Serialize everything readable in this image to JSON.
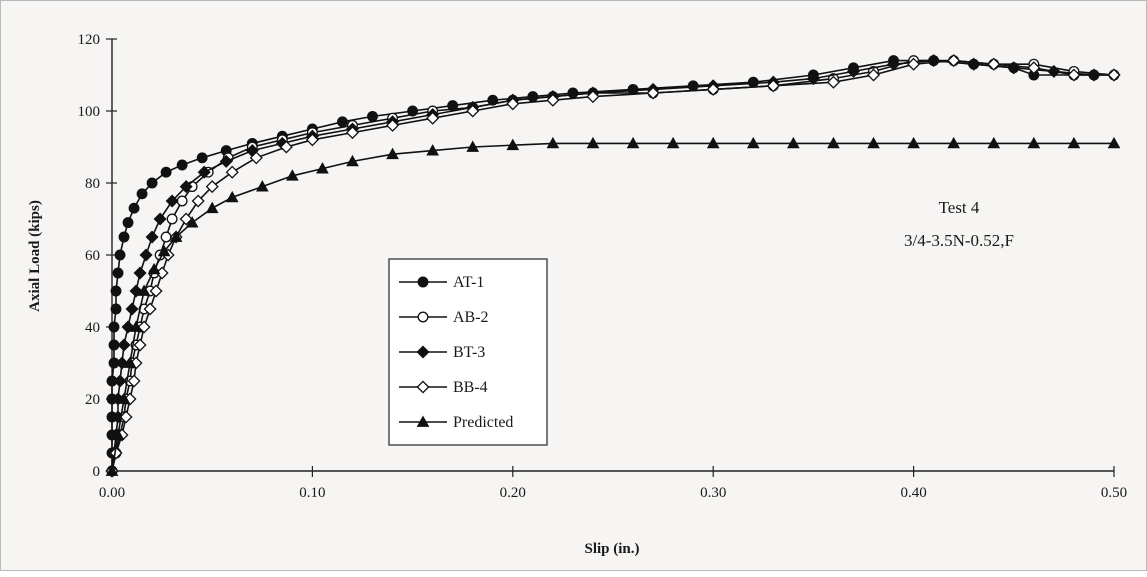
{
  "chart_data": {
    "type": "line",
    "title": "",
    "xlabel": "Slip (in.)",
    "ylabel": "Axial Load (kips)",
    "xlim": [
      0,
      0.5
    ],
    "ylim": [
      0,
      120
    ],
    "x_ticks": [
      "0.00",
      "0.10",
      "0.20",
      "0.30",
      "0.40",
      "0.50"
    ],
    "y_ticks": [
      "0",
      "20",
      "40",
      "60",
      "80",
      "100",
      "120"
    ],
    "grid": false,
    "legend_position": "center-left",
    "annotations": [
      "Test 4",
      "3/4-3.5N-0.52,F"
    ],
    "series": [
      {
        "name": "AT-1",
        "marker": "filled-circle",
        "color": "#111111",
        "points": [
          [
            0,
            0
          ],
          [
            0,
            5
          ],
          [
            0,
            10
          ],
          [
            0,
            15
          ],
          [
            0,
            20
          ],
          [
            0,
            25
          ],
          [
            0.001,
            30
          ],
          [
            0.001,
            35
          ],
          [
            0.001,
            40
          ],
          [
            0.002,
            45
          ],
          [
            0.002,
            50
          ],
          [
            0.003,
            55
          ],
          [
            0.004,
            60
          ],
          [
            0.006,
            65
          ],
          [
            0.008,
            69
          ],
          [
            0.011,
            73
          ],
          [
            0.015,
            77
          ],
          [
            0.02,
            80
          ],
          [
            0.027,
            83
          ],
          [
            0.035,
            85
          ],
          [
            0.045,
            87
          ],
          [
            0.057,
            89
          ],
          [
            0.07,
            91
          ],
          [
            0.085,
            93
          ],
          [
            0.1,
            95
          ],
          [
            0.115,
            97
          ],
          [
            0.13,
            98.5
          ],
          [
            0.15,
            100
          ],
          [
            0.17,
            101.5
          ],
          [
            0.19,
            103
          ],
          [
            0.21,
            104
          ],
          [
            0.23,
            105
          ],
          [
            0.26,
            106
          ],
          [
            0.29,
            107
          ],
          [
            0.32,
            108
          ],
          [
            0.35,
            110
          ],
          [
            0.37,
            112
          ],
          [
            0.39,
            114
          ],
          [
            0.41,
            114
          ],
          [
            0.43,
            113
          ],
          [
            0.45,
            112
          ],
          [
            0.46,
            110
          ],
          [
            0.48,
            110
          ],
          [
            0.49,
            110
          ]
        ]
      },
      {
        "name": "AB-2",
        "marker": "open-circle",
        "color": "#111111",
        "points": [
          [
            0,
            0
          ],
          [
            0.002,
            5
          ],
          [
            0.004,
            10
          ],
          [
            0.006,
            15
          ],
          [
            0.007,
            20
          ],
          [
            0.009,
            25
          ],
          [
            0.01,
            30
          ],
          [
            0.012,
            35
          ],
          [
            0.014,
            40
          ],
          [
            0.016,
            45
          ],
          [
            0.019,
            50
          ],
          [
            0.021,
            55
          ],
          [
            0.024,
            60
          ],
          [
            0.027,
            65
          ],
          [
            0.03,
            70
          ],
          [
            0.035,
            75
          ],
          [
            0.04,
            79
          ],
          [
            0.048,
            83
          ],
          [
            0.058,
            87
          ],
          [
            0.07,
            90
          ],
          [
            0.085,
            92
          ],
          [
            0.1,
            94
          ],
          [
            0.12,
            96
          ],
          [
            0.14,
            98
          ],
          [
            0.16,
            100
          ],
          [
            0.18,
            101
          ],
          [
            0.2,
            103
          ],
          [
            0.22,
            104
          ],
          [
            0.24,
            105
          ],
          [
            0.27,
            105
          ],
          [
            0.3,
            106
          ],
          [
            0.33,
            107
          ],
          [
            0.36,
            109
          ],
          [
            0.38,
            111
          ],
          [
            0.4,
            114
          ],
          [
            0.42,
            114
          ],
          [
            0.44,
            113
          ],
          [
            0.46,
            113
          ],
          [
            0.48,
            111
          ],
          [
            0.5,
            110
          ]
        ]
      },
      {
        "name": "BT-3",
        "marker": "filled-diamond",
        "color": "#111111",
        "points": [
          [
            0,
            0
          ],
          [
            0.001,
            5
          ],
          [
            0.002,
            10
          ],
          [
            0.003,
            15
          ],
          [
            0.003,
            20
          ],
          [
            0.004,
            25
          ],
          [
            0.005,
            30
          ],
          [
            0.006,
            35
          ],
          [
            0.008,
            40
          ],
          [
            0.01,
            45
          ],
          [
            0.012,
            50
          ],
          [
            0.014,
            55
          ],
          [
            0.017,
            60
          ],
          [
            0.02,
            65
          ],
          [
            0.024,
            70
          ],
          [
            0.03,
            75
          ],
          [
            0.037,
            79
          ],
          [
            0.046,
            83
          ],
          [
            0.057,
            86
          ],
          [
            0.07,
            89
          ],
          [
            0.085,
            91
          ],
          [
            0.1,
            93
          ],
          [
            0.12,
            95
          ],
          [
            0.14,
            97
          ],
          [
            0.16,
            99
          ],
          [
            0.18,
            101
          ],
          [
            0.2,
            103
          ],
          [
            0.22,
            104
          ],
          [
            0.24,
            105
          ],
          [
            0.27,
            106
          ],
          [
            0.3,
            107
          ],
          [
            0.33,
            108
          ],
          [
            0.35,
            109
          ],
          [
            0.37,
            111
          ],
          [
            0.39,
            113
          ],
          [
            0.41,
            114
          ],
          [
            0.43,
            113
          ],
          [
            0.45,
            112
          ],
          [
            0.47,
            111
          ],
          [
            0.49,
            110
          ],
          [
            0.5,
            110
          ]
        ]
      },
      {
        "name": "BB-4",
        "marker": "open-diamond",
        "color": "#111111",
        "points": [
          [
            0,
            0
          ],
          [
            0.002,
            5
          ],
          [
            0.005,
            10
          ],
          [
            0.007,
            15
          ],
          [
            0.009,
            20
          ],
          [
            0.011,
            25
          ],
          [
            0.012,
            30
          ],
          [
            0.014,
            35
          ],
          [
            0.016,
            40
          ],
          [
            0.019,
            45
          ],
          [
            0.022,
            50
          ],
          [
            0.025,
            55
          ],
          [
            0.028,
            60
          ],
          [
            0.032,
            65
          ],
          [
            0.037,
            70
          ],
          [
            0.043,
            75
          ],
          [
            0.05,
            79
          ],
          [
            0.06,
            83
          ],
          [
            0.072,
            87
          ],
          [
            0.087,
            90
          ],
          [
            0.1,
            92
          ],
          [
            0.12,
            94
          ],
          [
            0.14,
            96
          ],
          [
            0.16,
            98
          ],
          [
            0.18,
            100
          ],
          [
            0.2,
            102
          ],
          [
            0.22,
            103
          ],
          [
            0.24,
            104
          ],
          [
            0.27,
            105
          ],
          [
            0.3,
            106
          ],
          [
            0.33,
            107
          ],
          [
            0.36,
            108
          ],
          [
            0.38,
            110
          ],
          [
            0.4,
            113
          ],
          [
            0.42,
            114
          ],
          [
            0.44,
            113
          ],
          [
            0.46,
            112
          ],
          [
            0.48,
            110
          ],
          [
            0.5,
            110
          ]
        ]
      },
      {
        "name": "Predicted",
        "marker": "filled-triangle",
        "color": "#111111",
        "points": [
          [
            0,
            0
          ],
          [
            0.003,
            10
          ],
          [
            0.006,
            20
          ],
          [
            0.009,
            30
          ],
          [
            0.012,
            40
          ],
          [
            0.016,
            50
          ],
          [
            0.021,
            56
          ],
          [
            0.026,
            61
          ],
          [
            0.032,
            65
          ],
          [
            0.04,
            69
          ],
          [
            0.05,
            73
          ],
          [
            0.06,
            76
          ],
          [
            0.075,
            79
          ],
          [
            0.09,
            82
          ],
          [
            0.105,
            84
          ],
          [
            0.12,
            86
          ],
          [
            0.14,
            88
          ],
          [
            0.16,
            89
          ],
          [
            0.18,
            90
          ],
          [
            0.2,
            90.5
          ],
          [
            0.22,
            91
          ],
          [
            0.24,
            91
          ],
          [
            0.26,
            91
          ],
          [
            0.28,
            91
          ],
          [
            0.3,
            91
          ],
          [
            0.32,
            91
          ],
          [
            0.34,
            91
          ],
          [
            0.36,
            91
          ],
          [
            0.38,
            91
          ],
          [
            0.4,
            91
          ],
          [
            0.42,
            91
          ],
          [
            0.44,
            91
          ],
          [
            0.46,
            91
          ],
          [
            0.48,
            91
          ],
          [
            0.5,
            91
          ]
        ]
      }
    ]
  }
}
